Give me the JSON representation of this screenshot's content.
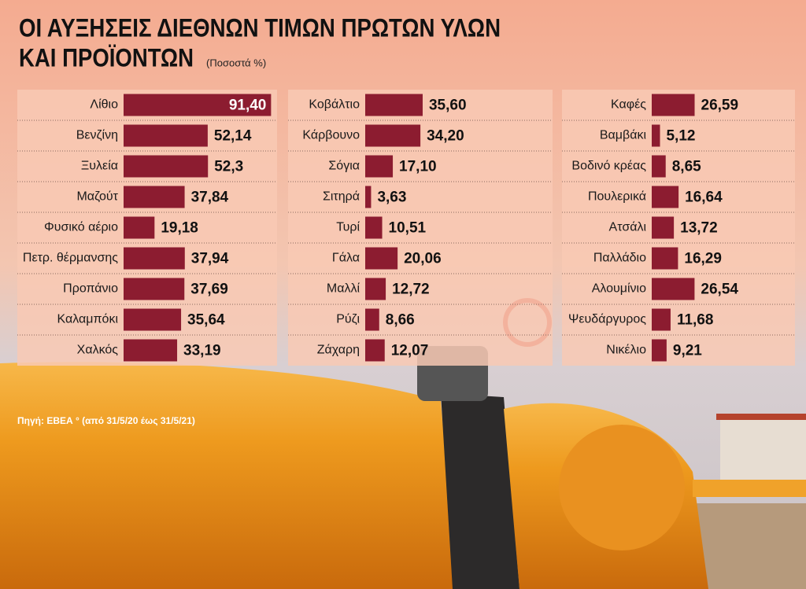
{
  "title_lines": [
    "ΟΙ ΑΥΞΗΣΕΙΣ ΔΙΕΘΝΩΝ ΤΙΜΩΝ ΠΡΩΤΩΝ ΥΛΩΝ",
    "ΚΑΙ ΠΡΟΪΟΝΤΩΝ"
  ],
  "subtitle": "(Ποσοστά %)",
  "source": "Πηγή: ΕΒΕΑ ° (από 31/5/20 έως 31/5/21)",
  "chart_data": [
    {
      "type": "hbar",
      "color": "#8c1c30",
      "categories": [
        "Λίθιο",
        "Βενζίνη",
        "Ξυλεία",
        "Μαζούτ",
        "Φυσικό αέριο",
        "Πετρ. θέρμανσης",
        "Προπάνιο",
        "Καλαμπόκι",
        "Χαλκός"
      ],
      "values": [
        91.4,
        52.14,
        52.3,
        37.84,
        19.18,
        37.94,
        37.69,
        35.64,
        33.19
      ],
      "value_labels": [
        "91,40",
        "52,14",
        "52,3",
        "37,84",
        "19,18",
        "37,94",
        "37,69",
        "35,64",
        "33,19"
      ]
    },
    {
      "type": "hbar",
      "color": "#8c1c30",
      "categories": [
        "Κοβάλτιο",
        "Κάρβουνο",
        "Σόγια",
        "Σιτηρά",
        "Τυρί",
        "Γάλα",
        "Μαλλί",
        "Ρύζι",
        "Ζάχαρη"
      ],
      "values": [
        35.6,
        34.2,
        17.1,
        3.63,
        10.51,
        20.06,
        12.72,
        8.66,
        12.07
      ],
      "value_labels": [
        "35,60",
        "34,20",
        "17,10",
        "3,63",
        "10,51",
        "20,06",
        "12,72",
        "8,66",
        "12,07"
      ]
    },
    {
      "type": "hbar",
      "color": "#8c1c30",
      "categories": [
        "Καφές",
        "Βαμβάκι",
        "Βοδινό κρέας",
        "Πουλερικά",
        "Ατσάλι",
        "Παλλάδιο",
        "Αλουμίνιο",
        "Ψευδάργυρος",
        "Νικέλιο"
      ],
      "values": [
        26.59,
        5.12,
        8.65,
        16.64,
        13.72,
        16.29,
        26.54,
        11.68,
        9.21
      ],
      "value_labels": [
        "26,59",
        "5,12",
        "8,65",
        "16,64",
        "13,72",
        "16,29",
        "26,54",
        "11,68",
        "9,21"
      ]
    }
  ]
}
